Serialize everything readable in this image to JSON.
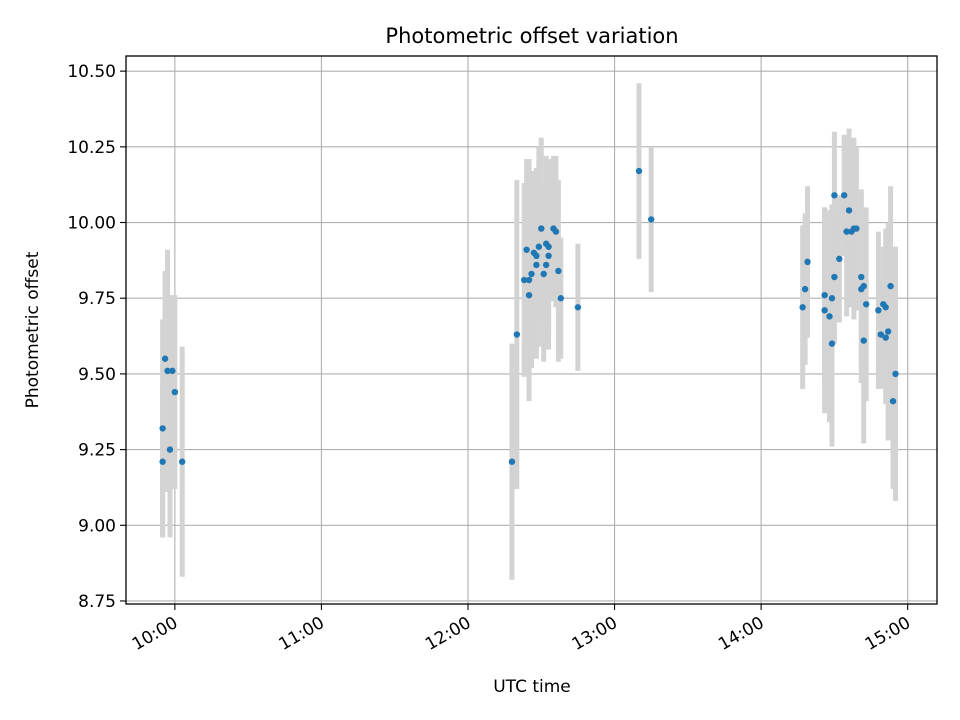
{
  "chart_data": {
    "type": "scatter",
    "title": "Photometric offset variation",
    "xlabel": "UTC time",
    "ylabel": "Photometric offset",
    "xlim": [
      "09:40",
      "15:12"
    ],
    "ylim": [
      8.74,
      10.55
    ],
    "x_ticks": [
      "10:00",
      "11:00",
      "12:00",
      "13:00",
      "14:00",
      "15:00"
    ],
    "y_ticks": [
      "8.75",
      "9.00",
      "9.25",
      "9.50",
      "9.75",
      "10.00",
      "10.25",
      "10.50"
    ],
    "grid": true,
    "error_bars": true,
    "colors": {
      "points": "#1f77b4",
      "error_bars": "#d3d3d3",
      "grid": "#b0b0b0"
    },
    "series": [
      {
        "points": [
          [
            "09:55",
            9.32,
            0.36
          ],
          [
            "09:55",
            9.21,
            0.25
          ],
          [
            "09:56",
            9.55,
            0.29
          ],
          [
            "09:57",
            9.51,
            0.4
          ],
          [
            "09:58",
            9.25,
            0.29
          ],
          [
            "09:59",
            9.51,
            0.25
          ],
          [
            "10:00",
            9.44,
            0.32
          ],
          [
            "10:03",
            9.21,
            0.38
          ],
          [
            "12:18",
            9.21,
            0.39
          ],
          [
            "12:20",
            9.63,
            0.51
          ],
          [
            "12:23",
            9.81,
            0.32
          ],
          [
            "12:24",
            9.91,
            0.3
          ],
          [
            "12:25",
            9.81,
            0.4
          ],
          [
            "12:25",
            9.76,
            0.33
          ],
          [
            "12:26",
            9.83,
            0.31
          ],
          [
            "12:27",
            9.9,
            0.27
          ],
          [
            "12:28",
            9.89,
            0.29
          ],
          [
            "12:28",
            9.86,
            0.31
          ],
          [
            "12:29",
            9.92,
            0.33
          ],
          [
            "12:30",
            9.98,
            0.3
          ],
          [
            "12:31",
            9.83,
            0.29
          ],
          [
            "12:32",
            9.86,
            0.27
          ],
          [
            "12:32",
            9.93,
            0.29
          ],
          [
            "12:33",
            9.89,
            0.31
          ],
          [
            "12:33",
            9.92,
            0.29
          ],
          [
            "12:35",
            9.98,
            0.24
          ],
          [
            "12:36",
            9.97,
            0.25
          ],
          [
            "12:37",
            9.84,
            0.3
          ],
          [
            "12:38",
            9.75,
            0.2
          ],
          [
            "12:45",
            9.72,
            0.21
          ],
          [
            "13:10",
            10.17,
            0.29
          ],
          [
            "13:15",
            10.01,
            0.24
          ],
          [
            "14:17",
            9.72,
            0.27
          ],
          [
            "14:18",
            9.78,
            0.25
          ],
          [
            "14:19",
            9.87,
            0.25
          ],
          [
            "14:26",
            9.76,
            0.29
          ],
          [
            "14:26",
            9.71,
            0.34
          ],
          [
            "14:28",
            9.69,
            0.35
          ],
          [
            "14:29",
            9.6,
            0.34
          ],
          [
            "14:29",
            9.75,
            0.31
          ],
          [
            "14:30",
            9.82,
            0.22
          ],
          [
            "14:30",
            10.09,
            0.21
          ],
          [
            "14:32",
            9.88,
            0.21
          ],
          [
            "14:34",
            10.09,
            0.2
          ],
          [
            "14:35",
            9.97,
            0.28
          ],
          [
            "14:36",
            10.04,
            0.27
          ],
          [
            "14:37",
            9.97,
            0.25
          ],
          [
            "14:38",
            9.98,
            0.3
          ],
          [
            "14:39",
            9.98,
            0.27
          ],
          [
            "14:41",
            9.82,
            0.29
          ],
          [
            "14:41",
            9.78,
            0.31
          ],
          [
            "14:42",
            9.61,
            0.34
          ],
          [
            "14:42",
            9.79,
            0.21
          ],
          [
            "14:43",
            9.73,
            0.32
          ],
          [
            "14:48",
            9.71,
            0.26
          ],
          [
            "14:49",
            9.63,
            0.18
          ],
          [
            "14:50",
            9.73,
            0.19
          ],
          [
            "14:51",
            9.62,
            0.22
          ],
          [
            "14:51",
            9.72,
            0.26
          ],
          [
            "14:52",
            9.64,
            0.36
          ],
          [
            "14:53",
            9.79,
            0.33
          ],
          [
            "14:54",
            9.41,
            0.29
          ],
          [
            "14:55",
            9.5,
            0.42
          ]
        ]
      }
    ]
  }
}
